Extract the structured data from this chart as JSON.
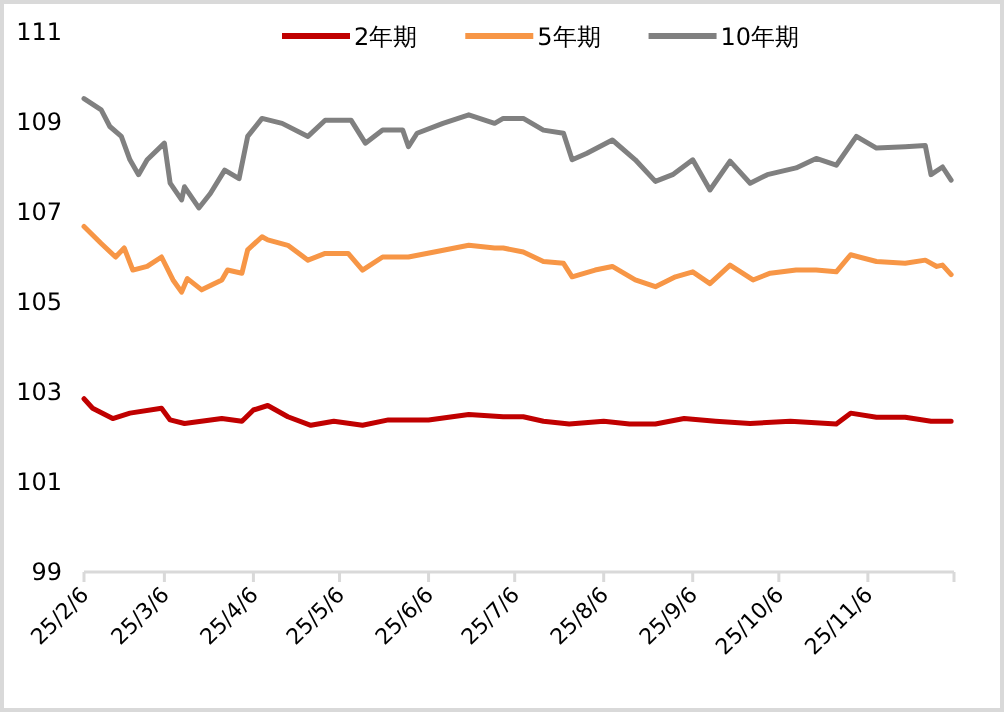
{
  "chart_data": {
    "type": "line",
    "legend": "top",
    "grid": false,
    "marker": "none",
    "line_style": "solid",
    "xlim": [
      "--02-06",
      "--12-06"
    ],
    "xticks": [
      {
        "value": "--02-06",
        "label": "25/2/6"
      },
      {
        "value": "--03-06",
        "label": "25/3/6"
      },
      {
        "value": "--04-06",
        "label": "25/4/6"
      },
      {
        "value": "--05-06",
        "label": "25/5/6"
      },
      {
        "value": "--06-06",
        "label": "25/6/6"
      },
      {
        "value": "--07-06",
        "label": "25/7/6"
      },
      {
        "value": "--08-06",
        "label": "25/8/6"
      },
      {
        "value": "--09-06",
        "label": "25/9/6"
      },
      {
        "value": "--10-06",
        "label": "25/10/6"
      },
      {
        "value": "--11-06",
        "label": "25/11/6"
      },
      {
        "value": "--12-06",
        "label": null
      }
    ],
    "ylim": [
      99,
      111
    ],
    "yticks": [
      99,
      101,
      103,
      105,
      107,
      109,
      111
    ],
    "series": [
      {
        "name": "2年期",
        "color": "#c00000",
        "x": [
          "--02-06",
          "--02-09",
          "--02-16",
          "--02-22",
          "--03-05",
          "--03-08",
          "--03-13",
          "--03-26",
          "--04-02",
          "--04-06",
          "--04-11",
          "--04-18",
          "--04-26",
          "--05-04",
          "--05-14",
          "--05-23",
          "--06-06",
          "--06-20",
          "--07-02",
          "--07-09",
          "--07-16",
          "--07-25",
          "--08-06",
          "--08-15",
          "--08-24",
          "--09-03",
          "--09-14",
          "--09-26",
          "--10-10",
          "--10-26",
          "--10-31",
          "--11-09",
          "--11-19",
          "--11-28",
          "--12-05"
        ],
        "values": [
          102.85,
          102.64,
          102.41,
          102.53,
          102.64,
          102.38,
          102.3,
          102.41,
          102.35,
          102.6,
          102.7,
          102.45,
          102.26,
          102.35,
          102.26,
          102.38,
          102.38,
          102.5,
          102.45,
          102.45,
          102.35,
          102.29,
          102.35,
          102.29,
          102.29,
          102.41,
          102.35,
          102.3,
          102.35,
          102.29,
          102.53,
          102.44,
          102.44,
          102.35,
          102.35
        ]
      },
      {
        "name": "5年期",
        "color": "#f79646",
        "x": [
          "--02-06",
          "--02-12",
          "--02-17",
          "--02-20",
          "--02-23",
          "--02-28",
          "--03-05",
          "--03-09",
          "--03-12",
          "--03-14",
          "--03-19",
          "--03-26",
          "--03-28",
          "--04-02",
          "--04-04",
          "--04-09",
          "--04-11",
          "--04-18",
          "--04-25",
          "--05-01",
          "--05-09",
          "--05-14",
          "--05-21",
          "--05-30",
          "--06-08",
          "--06-20",
          "--06-29",
          "--07-02",
          "--07-09",
          "--07-16",
          "--07-23",
          "--07-26",
          "--08-03",
          "--08-09",
          "--08-17",
          "--08-24",
          "--08-31",
          "--09-06",
          "--09-12",
          "--09-19",
          "--09-27",
          "--10-03",
          "--10-12",
          "--10-19",
          "--10-26",
          "--10-31",
          "--11-09",
          "--11-19",
          "--11-26",
          "--11-30",
          "--12-02",
          "--12-05"
        ],
        "values": [
          106.68,
          106.3,
          106.0,
          106.2,
          105.71,
          105.79,
          106.0,
          105.49,
          105.22,
          105.52,
          105.27,
          105.49,
          105.71,
          105.64,
          106.16,
          106.45,
          106.38,
          106.26,
          105.93,
          106.08,
          106.08,
          105.71,
          106.0,
          106.0,
          106.11,
          106.26,
          106.2,
          106.2,
          106.11,
          105.9,
          105.86,
          105.56,
          105.71,
          105.79,
          105.49,
          105.34,
          105.56,
          105.67,
          105.41,
          105.82,
          105.49,
          105.64,
          105.71,
          105.71,
          105.67,
          106.05,
          105.9,
          105.86,
          105.93,
          105.79,
          105.82,
          105.61
        ]
      },
      {
        "name": "10年期",
        "color": "#808080",
        "x": [
          "--02-06",
          "--02-12",
          "--02-15",
          "--02-19",
          "--02-22",
          "--02-25",
          "--02-28",
          "--03-06",
          "--03-08",
          "--03-12",
          "--03-13",
          "--03-18",
          "--03-22",
          "--03-27",
          "--04-01",
          "--04-04",
          "--04-09",
          "--04-16",
          "--04-25",
          "--05-01",
          "--05-10",
          "--05-15",
          "--05-21",
          "--05-28",
          "--05-30",
          "--06-02",
          "--06-11",
          "--06-20",
          "--06-29",
          "--07-02",
          "--07-09",
          "--07-16",
          "--07-23",
          "--07-26",
          "--07-31",
          "--08-09",
          "--08-17",
          "--08-24",
          "--08-30",
          "--09-06",
          "--09-12",
          "--09-19",
          "--09-26",
          "--10-02",
          "--10-12",
          "--10-19",
          "--10-26",
          "--11-02",
          "--11-09",
          "--11-19",
          "--11-26",
          "--11-28",
          "--12-02",
          "--12-05"
        ],
        "values": [
          109.52,
          109.27,
          108.9,
          108.68,
          108.16,
          107.83,
          108.16,
          108.53,
          107.64,
          107.27,
          107.56,
          107.09,
          107.41,
          107.93,
          107.74,
          108.68,
          109.08,
          108.97,
          108.68,
          109.04,
          109.04,
          108.53,
          108.82,
          108.82,
          108.45,
          108.75,
          108.97,
          109.16,
          108.97,
          109.08,
          109.08,
          108.82,
          108.75,
          108.16,
          108.3,
          108.6,
          108.16,
          107.68,
          107.83,
          108.16,
          107.49,
          108.13,
          107.64,
          107.83,
          107.98,
          108.19,
          108.04,
          108.68,
          108.42,
          108.45,
          108.48,
          107.83,
          108.0,
          107.71
        ]
      }
    ]
  }
}
